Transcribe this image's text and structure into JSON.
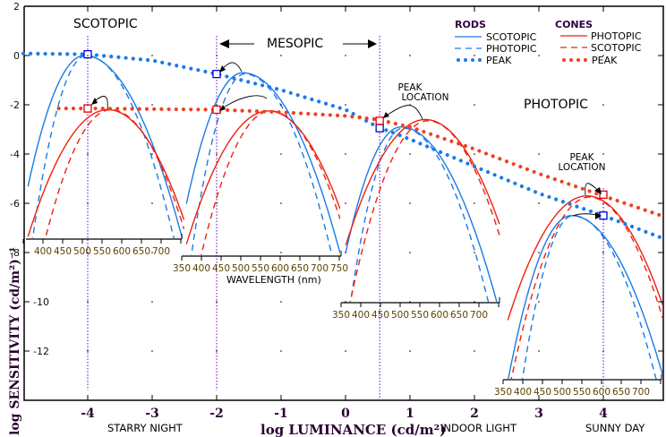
{
  "chart_data": {
    "type": "line",
    "xlabel": "log LUMINANCE (cd/m²)",
    "ylabel": "log SENSITIVITY (cd/m²)⁻¹",
    "xlim": [
      -5,
      4.95
    ],
    "ylim": [
      -14,
      2
    ],
    "x_ticks": [
      -4,
      -3,
      -2,
      -1,
      0,
      1,
      2,
      3,
      4
    ],
    "y_ticks": [
      2,
      0,
      -2,
      -4,
      -6,
      -8,
      -10,
      -12
    ],
    "regions": {
      "scotopic": "SCOTOPIC",
      "mesopic": "MESOPIC",
      "photopic": "PHOTOPIC"
    },
    "x_annotations": [
      {
        "x": -3,
        "label": "STARRY NIGHT"
      },
      {
        "x": 2,
        "label": "INDOOR LIGHT"
      },
      {
        "x": 4,
        "label": "SUNNY DAY"
      }
    ],
    "peak_location_label": [
      "PEAK",
      "LOCATION"
    ],
    "wavelength_label": "WAVELENGTH (nm)",
    "legend": {
      "rods_title": "RODS",
      "cones_title": "CONES",
      "rods": [
        "SCOTOPIC",
        "PHOTOPIC",
        "PEAK"
      ],
      "cones": [
        "PHOTOPIC",
        "SCOTOPIC",
        "PEAK"
      ]
    },
    "colors": {
      "rods": "#1a7ae8",
      "cones": "#f02010",
      "marker_rod": "#0000e0",
      "marker_cone": "#e00000",
      "guide": "#7000c0"
    },
    "peak_series": [
      {
        "name": "RODS PEAK",
        "x": [
          -5,
          -4,
          -3,
          -2,
          -1,
          0,
          0.5,
          1,
          2,
          3,
          4,
          4.9
        ],
        "y": [
          0.08,
          0.05,
          -0.2,
          -0.75,
          -1.4,
          -2.2,
          -2.9,
          -3.4,
          -4.5,
          -5.6,
          -6.5,
          -7.4
        ]
      },
      {
        "name": "CONES PEAK",
        "x": [
          -4.45,
          -4,
          -2,
          -1,
          0,
          0.5,
          1,
          2,
          3,
          4,
          4.9
        ],
        "y": [
          -2.15,
          -2.15,
          -2.2,
          -2.3,
          -2.45,
          -2.6,
          -2.9,
          -3.8,
          -4.8,
          -5.7,
          -6.5
        ]
      }
    ],
    "peak_markers": [
      {
        "luminance": -4,
        "rod": 0.05,
        "cone": -2.15
      },
      {
        "luminance": -2,
        "rod": -0.75,
        "cone": -2.2
      },
      {
        "luminance": 0.53,
        "rod": -2.95,
        "cone": -2.65
      },
      {
        "luminance": 4.0,
        "rod": -6.5,
        "cone": -5.65
      }
    ],
    "spectra_panels": [
      {
        "luminance": -4,
        "wavelength_ticks": [
          400,
          450,
          500,
          550,
          600,
          650,
          700
        ],
        "curves": {
          "rod_scotopic": {
            "peak_nm": 505,
            "peak": 0.0
          },
          "rod_photopic": {
            "peak_nm": 510,
            "peak": 0.0
          },
          "cone_photopic": {
            "peak_nm": 565,
            "peak": -2.2
          },
          "cone_scotopic": {
            "peak_nm": 572,
            "peak": -2.2
          }
        }
      },
      {
        "luminance": -2,
        "wavelength_ticks": [
          350,
          400,
          450,
          500,
          550,
          600,
          650,
          700,
          750
        ],
        "curves": {
          "rod_scotopic": {
            "peak_nm": 505,
            "peak": -0.7
          },
          "rod_photopic": {
            "peak_nm": 510,
            "peak": -0.75
          },
          "cone_photopic": {
            "peak_nm": 570,
            "peak": -2.25
          },
          "cone_scotopic": {
            "peak_nm": 575,
            "peak": -2.25
          }
        }
      },
      {
        "luminance": 0.53,
        "wavelength_ticks": [
          350,
          400,
          450,
          500,
          550,
          600,
          650,
          700
        ],
        "curves": {
          "rod_scotopic": {
            "peak_nm": 502,
            "peak": -2.9
          },
          "rod_photopic": {
            "peak_nm": 507,
            "peak": -2.95
          },
          "cone_photopic": {
            "peak_nm": 564,
            "peak": -2.6
          },
          "cone_scotopic": {
            "peak_nm": 570,
            "peak": -2.65
          }
        }
      },
      {
        "luminance": 4.0,
        "wavelength_ticks": [
          350,
          400,
          450,
          500,
          550,
          600,
          650,
          700
        ],
        "curves": {
          "rod_scotopic": {
            "peak_nm": 523,
            "peak": -6.5
          },
          "rod_photopic": {
            "peak_nm": 528,
            "peak": -6.5
          },
          "cone_photopic": {
            "peak_nm": 563,
            "peak": -5.7
          },
          "cone_scotopic": {
            "peak_nm": 568,
            "peak": -5.75
          }
        }
      }
    ]
  }
}
